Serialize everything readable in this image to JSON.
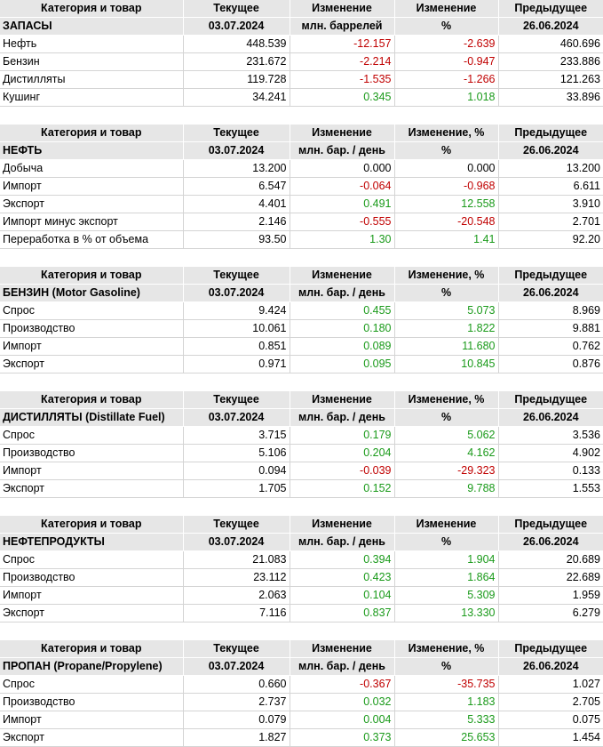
{
  "sections": [
    {
      "header": {
        "category": "Категория и товар",
        "current": "Текущее",
        "change": "Изменение",
        "change_pct": "Изменение",
        "previous": "Предыдущее"
      },
      "subheader": {
        "category": "ЗАПАСЫ",
        "current_date": "03.07.2024",
        "change_unit": "млн. баррелей",
        "change_pct_unit": "%",
        "previous_date": "26.06.2024"
      },
      "rows": [
        {
          "name": "Нефть",
          "current": "448.539",
          "change": "-12.157",
          "change_pct": "-2.639",
          "previous": "460.696"
        },
        {
          "name": "Бензин",
          "current": "231.672",
          "change": "-2.214",
          "change_pct": "-0.947",
          "previous": "233.886"
        },
        {
          "name": "Дистилляты",
          "current": "119.728",
          "change": "-1.535",
          "change_pct": "-1.266",
          "previous": "121.263"
        },
        {
          "name": "Кушинг",
          "current": "34.241",
          "change": "0.345",
          "change_pct": "1.018",
          "previous": "33.896"
        }
      ]
    },
    {
      "header": {
        "category": "Категория и товар",
        "current": "Текущее",
        "change": "Изменение",
        "change_pct": "Изменение, %",
        "previous": "Предыдущее"
      },
      "subheader": {
        "category": "НЕФТЬ",
        "current_date": "03.07.2024",
        "change_unit": "млн. бар. / день",
        "change_pct_unit": "%",
        "previous_date": "26.06.2024"
      },
      "rows": [
        {
          "name": "Добыча",
          "current": "13.200",
          "change": "0.000",
          "change_pct": "0.000",
          "previous": "13.200"
        },
        {
          "name": "Импорт",
          "current": "6.547",
          "change": "-0.064",
          "change_pct": "-0.968",
          "previous": "6.611"
        },
        {
          "name": "Экспорт",
          "current": "4.401",
          "change": "0.491",
          "change_pct": "12.558",
          "previous": "3.910"
        },
        {
          "name": "Импорт минус экспорт",
          "current": "2.146",
          "change": "-0.555",
          "change_pct": "-20.548",
          "previous": "2.701"
        },
        {
          "name": "Переработка в % от объема",
          "current": "93.50",
          "change": "1.30",
          "change_pct": "1.41",
          "previous": "92.20"
        }
      ]
    },
    {
      "header": {
        "category": "Категория и товар",
        "current": "Текущее",
        "change": "Изменение",
        "change_pct": "Изменение, %",
        "previous": "Предыдущее"
      },
      "subheader": {
        "category": "БЕНЗИН (Motor Gasoline)",
        "current_date": "03.07.2024",
        "change_unit": "млн. бар. / день",
        "change_pct_unit": "%",
        "previous_date": "26.06.2024"
      },
      "rows": [
        {
          "name": "Спрос",
          "current": "9.424",
          "change": "0.455",
          "change_pct": "5.073",
          "previous": "8.969"
        },
        {
          "name": "Производство",
          "current": "10.061",
          "change": "0.180",
          "change_pct": "1.822",
          "previous": "9.881"
        },
        {
          "name": "Импорт",
          "current": "0.851",
          "change": "0.089",
          "change_pct": "11.680",
          "previous": "0.762"
        },
        {
          "name": "Экспорт",
          "current": "0.971",
          "change": "0.095",
          "change_pct": "10.845",
          "previous": "0.876"
        }
      ]
    },
    {
      "header": {
        "category": "Категория и товар",
        "current": "Текущее",
        "change": "Изменение",
        "change_pct": "Изменение, %",
        "previous": "Предыдущее"
      },
      "subheader": {
        "category": "ДИСТИЛЛЯТЫ (Distillate Fuel)",
        "current_date": "03.07.2024",
        "change_unit": "млн. бар. / день",
        "change_pct_unit": "%",
        "previous_date": "26.06.2024"
      },
      "rows": [
        {
          "name": "Спрос",
          "current": "3.715",
          "change": "0.179",
          "change_pct": "5.062",
          "previous": "3.536"
        },
        {
          "name": "Производство",
          "current": "5.106",
          "change": "0.204",
          "change_pct": "4.162",
          "previous": "4.902"
        },
        {
          "name": "Импорт",
          "current": "0.094",
          "change": "-0.039",
          "change_pct": "-29.323",
          "previous": "0.133"
        },
        {
          "name": "Экспорт",
          "current": "1.705",
          "change": "0.152",
          "change_pct": "9.788",
          "previous": "1.553"
        }
      ]
    },
    {
      "header": {
        "category": "Категория и товар",
        "current": "Текущее",
        "change": "Изменение",
        "change_pct": "Изменение",
        "previous": "Предыдущее"
      },
      "subheader": {
        "category": "НЕФТЕПРОДУКТЫ",
        "current_date": "03.07.2024",
        "change_unit": "млн. бар. / день",
        "change_pct_unit": "%",
        "previous_date": "26.06.2024"
      },
      "rows": [
        {
          "name": "Спрос",
          "current": "21.083",
          "change": "0.394",
          "change_pct": "1.904",
          "previous": "20.689"
        },
        {
          "name": "Производство",
          "current": "23.112",
          "change": "0.423",
          "change_pct": "1.864",
          "previous": "22.689"
        },
        {
          "name": "Импорт",
          "current": "2.063",
          "change": "0.104",
          "change_pct": "5.309",
          "previous": "1.959"
        },
        {
          "name": "Экспорт",
          "current": "7.116",
          "change": "0.837",
          "change_pct": "13.330",
          "previous": "6.279"
        }
      ]
    },
    {
      "header": {
        "category": "Категория и товар",
        "current": "Текущее",
        "change": "Изменение",
        "change_pct": "Изменение, %",
        "previous": "Предыдущее"
      },
      "subheader": {
        "category": "ПРОПАН (Propane/Propylene)",
        "current_date": "03.07.2024",
        "change_unit": "млн. бар. / день",
        "change_pct_unit": "%",
        "previous_date": "26.06.2024"
      },
      "rows": [
        {
          "name": "Спрос",
          "current": "0.660",
          "change": "-0.367",
          "change_pct": "-35.735",
          "previous": "1.027"
        },
        {
          "name": "Производство",
          "current": "2.737",
          "change": "0.032",
          "change_pct": "1.183",
          "previous": "2.705"
        },
        {
          "name": "Импорт",
          "current": "0.079",
          "change": "0.004",
          "change_pct": "5.333",
          "previous": "0.075"
        },
        {
          "name": "Экспорт",
          "current": "1.827",
          "change": "0.373",
          "change_pct": "25.653",
          "previous": "1.454"
        }
      ]
    }
  ],
  "colors": {
    "negative": "#c00000",
    "positive": "#1a9a1a",
    "header_bg": "#e6e6e6"
  }
}
